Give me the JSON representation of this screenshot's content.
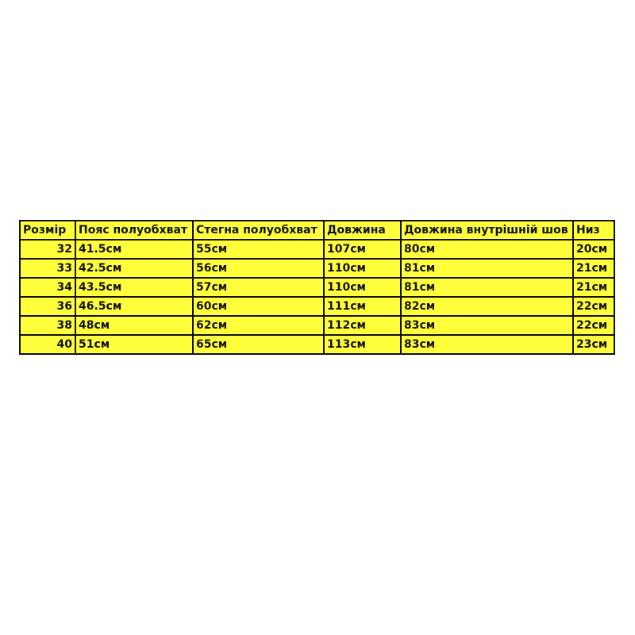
{
  "table": {
    "header": [
      "Розмір",
      "Пояс полуобхват",
      "Стегна полуобхват",
      "Довжина",
      "Довжина внутрішній шов",
      "Низ"
    ],
    "rows": [
      [
        "32",
        "41.5см",
        "55см",
        "107см",
        "80см",
        "20см"
      ],
      [
        "33",
        "42.5см",
        "56см",
        "110см",
        "81см",
        "21см"
      ],
      [
        "34",
        "43.5см",
        "57см",
        "110см",
        "81см",
        "21см"
      ],
      [
        "36",
        "46.5см",
        "60см",
        "111см",
        "82см",
        "22см"
      ],
      [
        "38",
        "48см",
        "62см",
        "112см",
        "83см",
        "22см"
      ],
      [
        "40",
        "51см",
        "65см",
        "113см",
        "83см",
        "23см"
      ]
    ]
  }
}
